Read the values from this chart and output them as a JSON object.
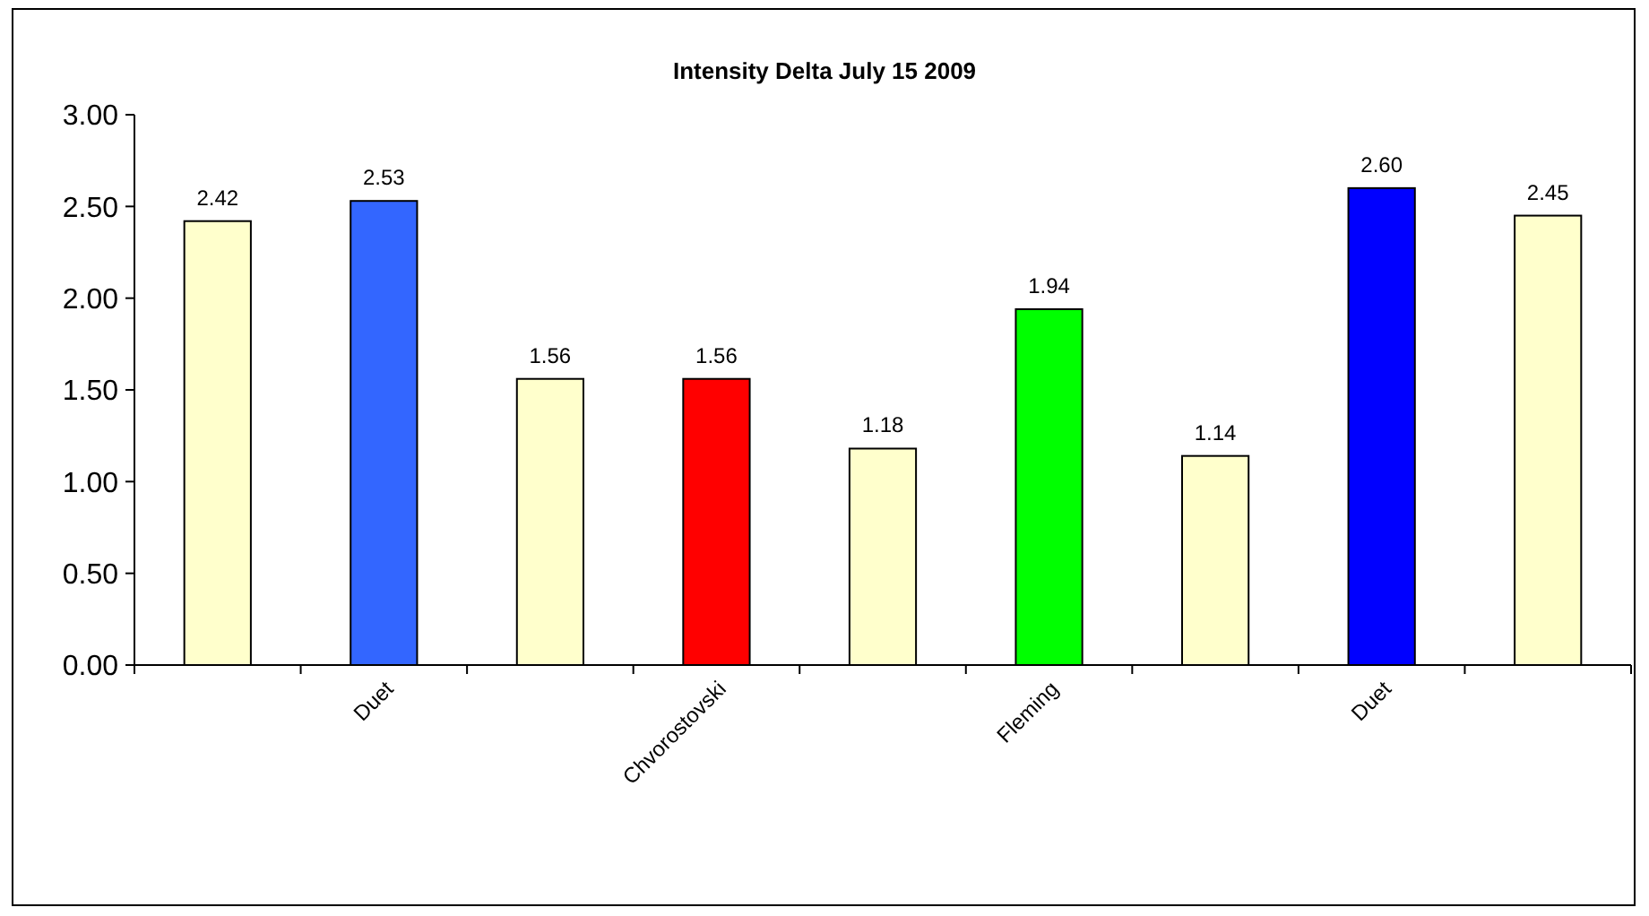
{
  "chart_data": {
    "type": "bar",
    "title": "Intensity Delta July 15 2009",
    "categories": [
      null,
      "Duet",
      null,
      "Chvorostovski",
      null,
      "Fleming",
      null,
      "Duet",
      null
    ],
    "values": [
      2.42,
      2.53,
      1.56,
      1.56,
      1.18,
      1.94,
      1.14,
      2.6,
      2.45
    ],
    "colors": [
      "#ffffcc",
      "#3366ff",
      "#ffffcc",
      "#ff0000",
      "#ffffcc",
      "#00ff00",
      "#ffffcc",
      "#0000ff",
      "#ffffcc"
    ],
    "value_labels": [
      "2.42",
      "2.53",
      "1.56",
      "1.56",
      "1.18",
      "1.94",
      "1.14",
      "2.60",
      "2.45"
    ],
    "ylim": [
      0,
      3
    ],
    "yticks": [
      {
        "value": 0,
        "label": "0.00"
      },
      {
        "value": 0.5,
        "label": "0.50"
      },
      {
        "value": 1,
        "label": "1.00"
      },
      {
        "value": 1.5,
        "label": "1.50"
      },
      {
        "value": 2,
        "label": "2.00"
      },
      {
        "value": 2.5,
        "label": "2.50"
      },
      {
        "value": 3,
        "label": "3.00"
      }
    ]
  }
}
